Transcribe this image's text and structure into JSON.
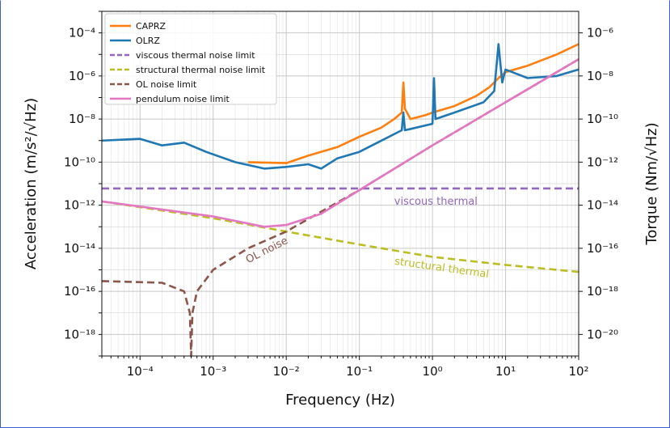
{
  "chart_data": {
    "type": "line",
    "x_scale": "log",
    "y_scale": "log",
    "xlabel": "Frequency (Hz)",
    "ylabel": "Acceleration (m/s²/√Hz)",
    "y2label": "Torque (Nm/√Hz)",
    "xlim": [
      3e-05,
      100
    ],
    "ylim": [
      1e-19,
      0.001
    ],
    "y2lim": [
      1e-21,
      1e-05
    ],
    "grid": true,
    "legend_placement": "top-left",
    "x_ticks": [
      "10⁻⁴",
      "10⁻³",
      "10⁻²",
      "10⁻¹",
      "10⁰",
      "10¹",
      "10²"
    ],
    "y_ticks": [
      "10⁻¹⁸",
      "10⁻¹⁶",
      "10⁻¹⁴",
      "10⁻¹²",
      "10⁻¹⁰",
      "10⁻⁸",
      "10⁻⁶",
      "10⁻⁴"
    ],
    "y2_ticks": [
      "10⁻²⁰",
      "10⁻¹⁸",
      "10⁻¹⁶",
      "10⁻¹⁴",
      "10⁻¹²",
      "10⁻¹⁰",
      "10⁻⁸",
      "10⁻⁶"
    ],
    "series": [
      {
        "name": "CAP_RZ",
        "legend_label": "CAPRZ",
        "color": "#ff7f0e",
        "style": "solid",
        "points": [
          [
            0.003,
            1e-10
          ],
          [
            0.01,
            9e-11
          ],
          [
            0.02,
            2e-10
          ],
          [
            0.05,
            5e-10
          ],
          [
            0.1,
            1.5e-09
          ],
          [
            0.2,
            4e-09
          ],
          [
            0.3,
            1e-08
          ],
          [
            0.38,
            2e-08
          ],
          [
            0.4,
            5e-07
          ],
          [
            0.42,
            3e-08
          ],
          [
            0.5,
            1e-08
          ],
          [
            0.8,
            1.5e-08
          ],
          [
            1,
            2e-08
          ],
          [
            2,
            4e-08
          ],
          [
            4,
            1.2e-07
          ],
          [
            6,
            3e-07
          ],
          [
            8,
            8e-07
          ],
          [
            10,
            1.5e-06
          ],
          [
            20,
            3e-06
          ],
          [
            50,
            1e-05
          ],
          [
            100,
            3e-05
          ]
        ]
      },
      {
        "name": "OL_RZ",
        "legend_label": "OLRZ",
        "color": "#1f77b4",
        "style": "solid",
        "points": [
          [
            3e-05,
            1e-09
          ],
          [
            0.0001,
            1.2e-09
          ],
          [
            0.0002,
            6e-10
          ],
          [
            0.0004,
            8e-10
          ],
          [
            0.0008,
            3e-10
          ],
          [
            0.002,
            1e-10
          ],
          [
            0.005,
            5e-11
          ],
          [
            0.01,
            6e-11
          ],
          [
            0.02,
            8e-11
          ],
          [
            0.03,
            5e-11
          ],
          [
            0.05,
            1.5e-10
          ],
          [
            0.1,
            3e-10
          ],
          [
            0.2,
            1e-09
          ],
          [
            0.38,
            3e-09
          ],
          [
            0.4,
            2e-08
          ],
          [
            0.42,
            3e-09
          ],
          [
            1,
            6e-09
          ],
          [
            1.05,
            8e-07
          ],
          [
            1.1,
            1e-08
          ],
          [
            2,
            2e-08
          ],
          [
            5,
            6e-08
          ],
          [
            7,
            2e-07
          ],
          [
            8,
            3e-05
          ],
          [
            9,
            5e-07
          ],
          [
            10,
            2e-06
          ],
          [
            20,
            8e-07
          ],
          [
            50,
            1e-06
          ],
          [
            100,
            2e-06
          ]
        ]
      },
      {
        "name": "viscous thermal noise limit",
        "legend_label": "viscous thermal noise limit",
        "color": "#9467bd",
        "style": "dashed",
        "points": [
          [
            3e-05,
            6e-12
          ],
          [
            100,
            6e-12
          ]
        ]
      },
      {
        "name": "structural thermal noise limit",
        "legend_label": "structural thermal noise limit",
        "color": "#bcbd22",
        "style": "dashed",
        "points": [
          [
            3e-05,
            1.5e-12
          ],
          [
            0.001,
            2.5e-13
          ],
          [
            0.01,
            6e-14
          ],
          [
            0.1,
            1.5e-14
          ],
          [
            1,
            4e-15
          ],
          [
            10,
            1.7e-15
          ],
          [
            100,
            8e-16
          ]
        ]
      },
      {
        "name": "OL noise limit",
        "legend_label": "OL noise limit",
        "color": "#8c564b",
        "style": "dashed",
        "points": [
          [
            3e-05,
            3e-16
          ],
          [
            0.0002,
            2.5e-16
          ],
          [
            0.0004,
            1e-16
          ],
          [
            0.00048,
            1e-17
          ],
          [
            0.0005,
            1e-19
          ],
          [
            0.00052,
            1e-17
          ],
          [
            0.0006,
            1e-16
          ],
          [
            0.001,
            1e-15
          ],
          [
            0.003,
            1e-14
          ],
          [
            0.01,
            6e-14
          ],
          [
            0.03,
            5e-13
          ],
          [
            0.1,
            5e-12
          ],
          [
            1,
            6e-10
          ],
          [
            10,
            6e-08
          ],
          [
            100,
            6e-06
          ]
        ]
      },
      {
        "name": "pendulum noise limit",
        "legend_label": "pendulum noise limit",
        "color": "#e377c2",
        "style": "solid",
        "points": [
          [
            3e-05,
            1.5e-12
          ],
          [
            0.001,
            3e-13
          ],
          [
            0.005,
            1e-13
          ],
          [
            0.01,
            1.2e-13
          ],
          [
            0.03,
            4e-13
          ],
          [
            0.1,
            5e-12
          ],
          [
            1,
            6e-10
          ],
          [
            10,
            6e-08
          ],
          [
            100,
            6e-06
          ]
        ]
      }
    ],
    "annotations": [
      {
        "text": "viscous thermal",
        "color": "#9467bd"
      },
      {
        "text": "structural thermal",
        "color": "#bcbd22"
      },
      {
        "text": "OL noise",
        "color": "#8c564b"
      }
    ]
  }
}
